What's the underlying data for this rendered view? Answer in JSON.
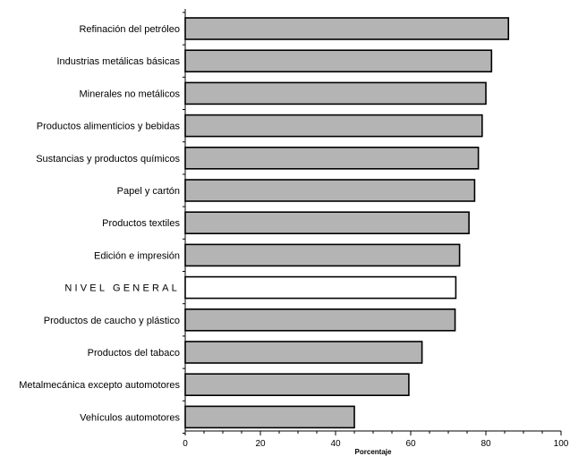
{
  "chart_data": {
    "type": "bar",
    "orientation": "horizontal",
    "categories": [
      "Refinación del petróleo",
      "Industrias metálicas básicas",
      "Minerales no metálicos",
      "Productos alimenticios y bebidas",
      "Sustancias y productos químicos",
      "Papel y cartón",
      "Productos textiles",
      "Edición e impresión",
      "NIVEL GENERAL",
      "Productos de caucho y plástico",
      "Productos del tabaco",
      "Metalmecánica excepto automotores",
      "Vehículos automotores"
    ],
    "values": [
      86,
      81.5,
      80,
      79,
      78,
      77,
      75.5,
      73,
      72,
      71.8,
      63,
      59.5,
      45
    ],
    "highlight_category": "NIVEL GENERAL",
    "bar_color": "#b4b4b4",
    "highlight_color": "#ffffff",
    "xlim": [
      0,
      100
    ],
    "xticks": [
      0,
      20,
      40,
      60,
      80,
      100
    ],
    "xlabel": "Porcentaje",
    "ylabel": "",
    "title": "",
    "grid": false
  }
}
